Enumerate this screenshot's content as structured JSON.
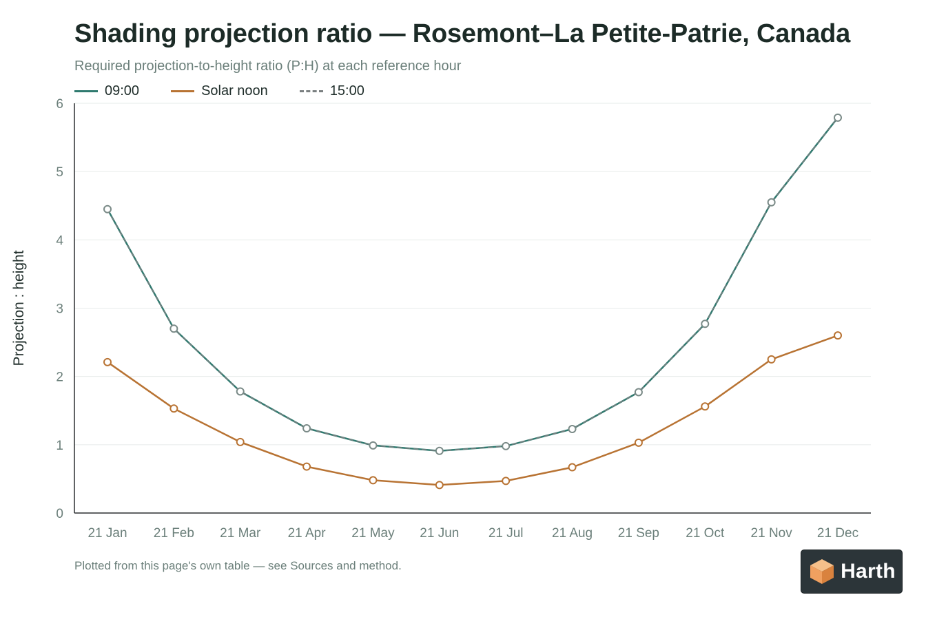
{
  "chart_data": {
    "type": "line",
    "title": "Shading projection ratio — Rosemont–La Petite-Patrie, Canada",
    "subtitle": "Required projection-to-height ratio (P:H) at each reference hour",
    "xlabel": "",
    "ylabel": "Projection : height",
    "ylim": [
      0,
      6
    ],
    "yticks": [
      "0",
      "1",
      "2",
      "3",
      "4",
      "5",
      "6"
    ],
    "categories": [
      "21 Jan",
      "21 Feb",
      "21 Mar",
      "21 Apr",
      "21 May",
      "21 Jun",
      "21 Jul",
      "21 Aug",
      "21 Sep",
      "21 Oct",
      "21 Nov",
      "21 Dec"
    ],
    "grid": true,
    "legend_position": "top-left",
    "series": [
      {
        "name": "09:00",
        "color": "#2f7a6f",
        "dash": false,
        "values": [
          4.45,
          2.7,
          1.78,
          1.24,
          0.99,
          0.91,
          0.98,
          1.23,
          1.77,
          2.77,
          4.55,
          5.79
        ]
      },
      {
        "name": "Solar noon",
        "color": "#b87333",
        "dash": false,
        "values": [
          2.21,
          1.53,
          1.04,
          0.68,
          0.48,
          0.41,
          0.47,
          0.67,
          1.03,
          1.56,
          2.25,
          2.6
        ]
      },
      {
        "name": "15:00",
        "color": "#7a7f80",
        "dash": true,
        "values": [
          4.45,
          2.7,
          1.78,
          1.24,
          0.99,
          0.91,
          0.98,
          1.23,
          1.77,
          2.77,
          4.55,
          5.79
        ]
      }
    ]
  },
  "footnote": "Plotted from this page's own table — see Sources and method.",
  "logo": {
    "text": "Harth",
    "icon": "harth-cube-icon",
    "background": "#2c3539",
    "accent": "#f0a060"
  }
}
